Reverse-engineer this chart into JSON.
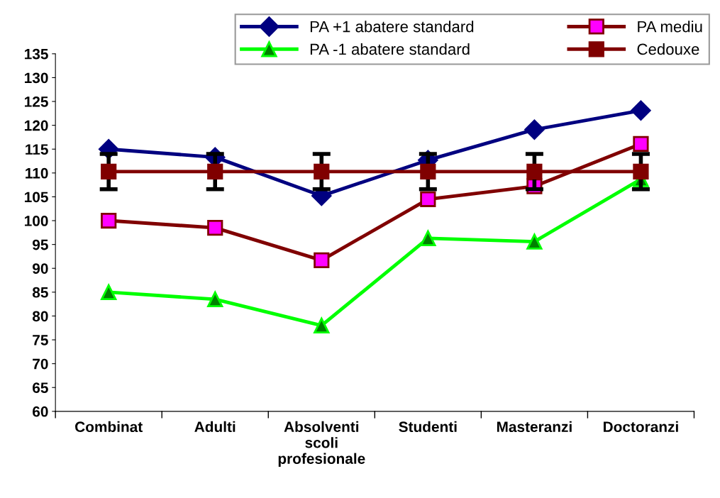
{
  "chart_data": {
    "type": "line",
    "categories": [
      "Combinat",
      "Adulti",
      "Absolventi\nscoli\nprofesionale",
      "Studenti",
      "Masteranzi",
      "Doctoranzi"
    ],
    "series": [
      {
        "name": "PA +1 abatere standard",
        "color": "#000080",
        "marker": "diamond",
        "values": [
          115,
          113.3,
          105.2,
          112.7,
          119.1,
          123.1
        ]
      },
      {
        "name": "PA -1 abatere standard",
        "color": "#00ff00",
        "marker": "triangle",
        "values": [
          85,
          83.5,
          78,
          96.3,
          95.6,
          108.7
        ]
      },
      {
        "name": "PA mediu",
        "color": "#800000",
        "marker": "square",
        "values": [
          100,
          98.5,
          91.7,
          104.5,
          107.2,
          116.1
        ]
      },
      {
        "name": "Cedouxe",
        "color": "#800000",
        "marker": "square",
        "values": [
          110.3,
          110.3,
          110.3,
          110.3,
          110.3,
          110.3
        ],
        "errors": [
          3.7,
          3.7,
          3.7,
          3.7,
          3.7,
          3.7
        ]
      }
    ],
    "ylim": [
      60,
      135
    ],
    "yticks": [
      60,
      65,
      70,
      75,
      80,
      85,
      90,
      95,
      100,
      105,
      110,
      115,
      120,
      125,
      130,
      135
    ],
    "grid": false,
    "legend": "top right",
    "line_style": "solid"
  }
}
